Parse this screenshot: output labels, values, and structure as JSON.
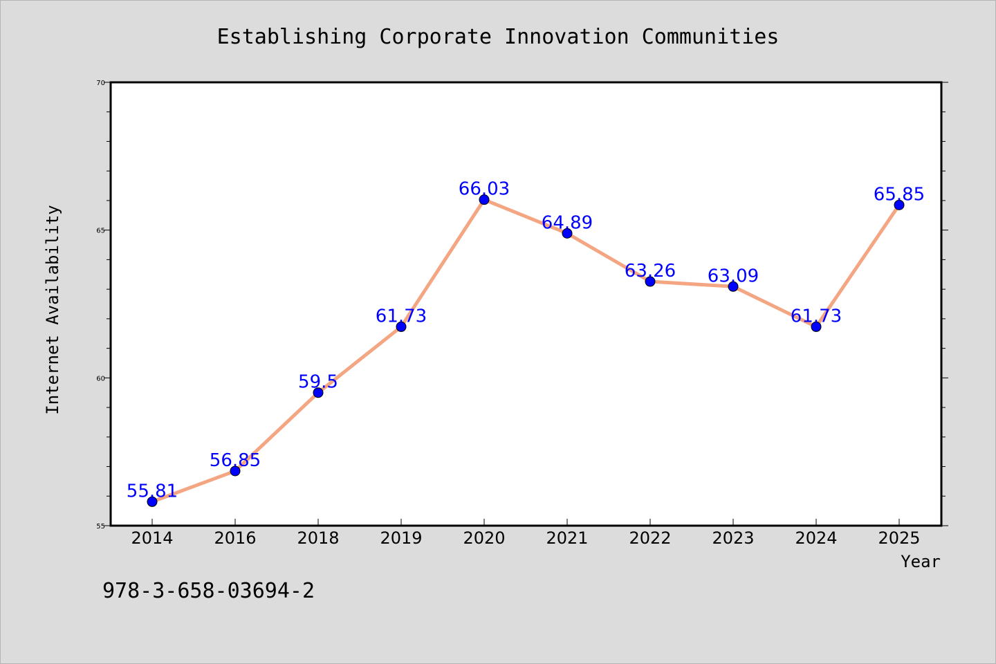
{
  "chart_data": {
    "type": "line",
    "title": "Establishing Corporate Innovation Communities",
    "xlabel": "Year",
    "ylabel": "Internet Availability",
    "categories": [
      "2014",
      "2016",
      "2018",
      "2019",
      "2020",
      "2021",
      "2022",
      "2023",
      "2024",
      "2025"
    ],
    "series": [
      {
        "values": [
          55.81,
          56.85,
          59.5,
          61.73,
          66.03,
          64.89,
          63.26,
          63.09,
          61.73,
          65.85
        ],
        "labels": [
          "55.81",
          "56.85",
          "59.5",
          "61.73",
          "66.03",
          "64.89",
          "63.26",
          "63.09",
          "61.73",
          "65.85"
        ]
      }
    ],
    "ylim": [
      55,
      70
    ],
    "yticks": [
      "55",
      "60",
      "65",
      "70"
    ],
    "grid": false,
    "colors": {
      "line": "#f4a582",
      "marker": "#0000ff",
      "label": "#0000ff",
      "background": "#dcdcdc",
      "plot_background": "#ffffff"
    }
  },
  "footer": {
    "isbn": "978-3-658-03694-2"
  }
}
